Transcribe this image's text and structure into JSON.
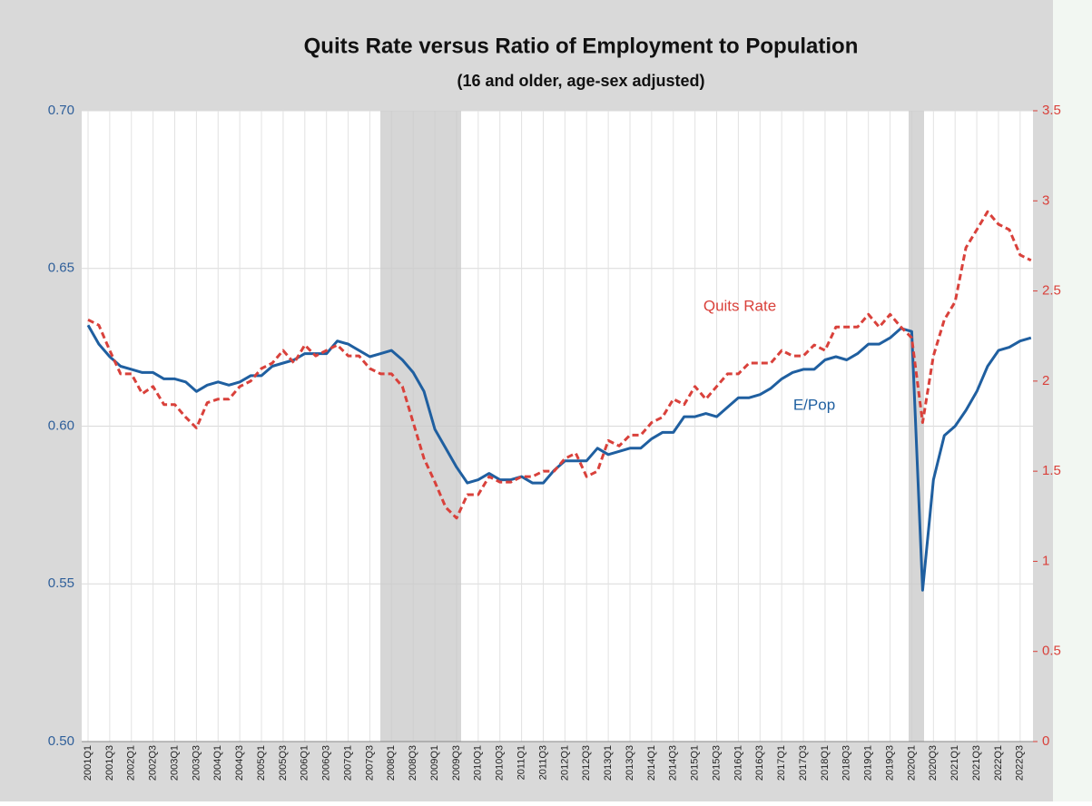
{
  "chart_data": {
    "type": "line",
    "title": "Quits Rate versus Ratio of Employment to Population",
    "subtitle": "(16 and older, age-sex adjusted)",
    "categories": [
      "2001Q1",
      null,
      "2001Q3",
      null,
      "2002Q1",
      null,
      "2002Q3",
      null,
      "2003Q1",
      null,
      "2003Q3",
      null,
      "2004Q1",
      null,
      "2004Q3",
      null,
      "2005Q1",
      null,
      "2005Q3",
      null,
      "2006Q1",
      null,
      "2006Q3",
      null,
      "2007Q1",
      null,
      "2007Q3",
      null,
      "2008Q1",
      null,
      "2008Q3",
      null,
      "2009Q1",
      null,
      "2009Q3",
      null,
      "2010Q1",
      null,
      "2010Q3",
      null,
      "2011Q1",
      null,
      "2011Q3",
      null,
      "2012Q1",
      null,
      "2012Q3",
      null,
      "2013Q1",
      null,
      "2013Q3",
      null,
      "2014Q1",
      null,
      "2014Q3",
      null,
      "2015Q1",
      null,
      "2015Q3",
      null,
      "2016Q1",
      null,
      "2016Q3",
      null,
      "2017Q1",
      null,
      "2017Q3",
      null,
      "2018Q1",
      null,
      "2018Q3",
      null,
      "2019Q1",
      null,
      "2019Q3",
      null,
      "2020Q1",
      null,
      "2020Q3",
      null,
      "2021Q1",
      null,
      "2021Q3",
      null,
      "2022Q1",
      null,
      "2022Q3",
      null
    ],
    "series": [
      {
        "name": "E/Pop",
        "color": "#1f5fa0",
        "dash": false,
        "values": [
          0.632,
          0.626,
          0.622,
          0.619,
          0.618,
          0.617,
          0.617,
          0.615,
          0.615,
          0.614,
          0.611,
          0.613,
          0.614,
          0.613,
          0.614,
          0.616,
          0.616,
          0.619,
          0.62,
          0.621,
          0.623,
          0.623,
          0.623,
          0.627,
          0.626,
          0.624,
          0.622,
          0.623,
          0.624,
          0.621,
          0.617,
          0.611,
          0.599,
          0.593,
          0.587,
          0.582,
          0.583,
          0.585,
          0.583,
          0.583,
          0.584,
          0.582,
          0.582,
          0.586,
          0.589,
          0.589,
          0.589,
          0.593,
          0.591,
          0.592,
          0.593,
          0.593,
          0.596,
          0.598,
          0.598,
          0.603,
          0.603,
          0.604,
          0.603,
          0.606,
          0.609,
          0.609,
          0.61,
          0.612,
          0.615,
          0.617,
          0.618,
          0.618,
          0.621,
          0.622,
          0.621,
          0.623,
          0.626,
          0.626,
          0.628,
          0.631,
          0.63,
          0.548,
          0.583,
          0.597,
          0.6,
          0.605,
          0.611,
          0.619,
          0.624,
          0.625,
          0.627,
          0.628
        ]
      },
      {
        "name": "Quits Rate",
        "color": "#d9413b",
        "dash": true,
        "axis": "y2",
        "values": [
          2.34,
          2.31,
          2.17,
          2.04,
          2.04,
          1.93,
          1.97,
          1.87,
          1.87,
          1.8,
          1.74,
          1.88,
          1.9,
          1.9,
          1.97,
          2.0,
          2.07,
          2.1,
          2.17,
          2.1,
          2.2,
          2.14,
          2.17,
          2.2,
          2.14,
          2.14,
          2.07,
          2.04,
          2.04,
          1.97,
          1.77,
          1.57,
          1.44,
          1.3,
          1.24,
          1.37,
          1.37,
          1.47,
          1.44,
          1.44,
          1.47,
          1.47,
          1.5,
          1.5,
          1.57,
          1.6,
          1.47,
          1.5,
          1.67,
          1.64,
          1.7,
          1.7,
          1.77,
          1.8,
          1.9,
          1.87,
          1.97,
          1.9,
          1.97,
          2.04,
          2.04,
          2.1,
          2.1,
          2.1,
          2.17,
          2.14,
          2.14,
          2.2,
          2.17,
          2.3,
          2.3,
          2.3,
          2.37,
          2.3,
          2.37,
          2.3,
          2.24,
          1.77,
          2.14,
          2.34,
          2.44,
          2.74,
          2.84,
          2.94,
          2.87,
          2.84,
          2.7,
          2.67
        ]
      }
    ],
    "ylim": [
      0.5,
      0.7
    ],
    "yticks": [
      {
        "value": 0.5,
        "label": "0.50"
      },
      0.55,
      {
        "value": 0.6,
        "label": "0.60"
      },
      0.65,
      {
        "value": 0.7,
        "label": "0.70"
      }
    ],
    "y2lim": [
      0,
      3.5
    ],
    "y2ticks": [
      0,
      0.5,
      1,
      1.5,
      2,
      2.5,
      3,
      3.5
    ],
    "grid": true
  }
}
